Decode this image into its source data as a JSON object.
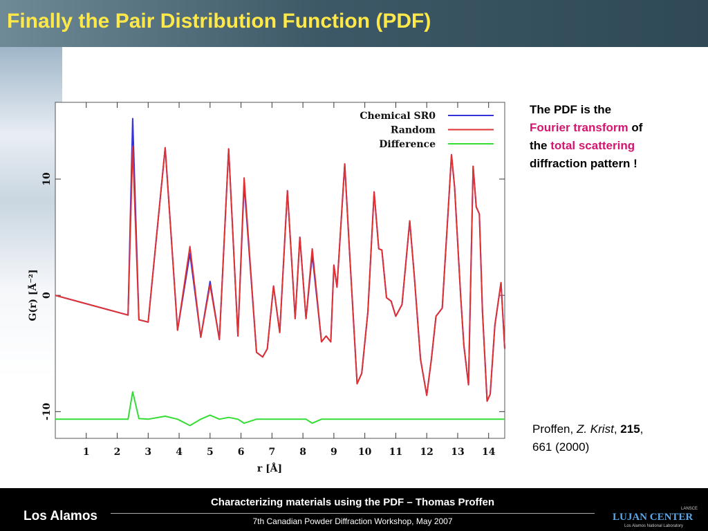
{
  "header": {
    "title": "Finally the Pair Distribution Function (PDF)"
  },
  "note": {
    "parts": [
      "The PDF is the",
      "Fourier transform",
      "of",
      "the",
      "total scattering",
      "diffraction pattern !"
    ]
  },
  "citation": {
    "parts": [
      "Proffen,",
      "Z. Krist",
      ",",
      "215",
      ",",
      "661 (2000)"
    ]
  },
  "footer": {
    "title": "Characterizing materials using the PDF – Thomas Proffen",
    "subtitle": "7th Canadian Powder Diffraction Workshop, May 2007",
    "left_logo": "Los Alamos",
    "right_logo": "LUJAN CENTER",
    "right_logo_top": "LANSCE",
    "right_logo_sub": "Los Alamos National Laboratory"
  },
  "chart_data": {
    "type": "line",
    "x_label": "r [Å]",
    "y_label": "G(r) [Å⁻²]",
    "xlim": [
      0,
      14.52
    ],
    "ylim": [
      -12.3,
      16.6
    ],
    "xticks": [
      1,
      2,
      3,
      4,
      5,
      6,
      7,
      8,
      9,
      10,
      11,
      12,
      13,
      14
    ],
    "yticks": [
      -10,
      0,
      10
    ],
    "legend": "upper right",
    "x": [
      0,
      2.35,
      2.5,
      2.7,
      3.0,
      3.55,
      3.95,
      4.35,
      4.7,
      5.0,
      5.3,
      5.6,
      5.9,
      6.1,
      6.5,
      6.7,
      6.85,
      7.05,
      7.25,
      7.5,
      7.75,
      7.9,
      8.1,
      8.3,
      8.6,
      8.75,
      8.9,
      9.0,
      9.1,
      9.35,
      9.5,
      9.75,
      9.9,
      10.1,
      10.3,
      10.45,
      10.55,
      10.7,
      10.85,
      11.0,
      11.2,
      11.45,
      11.6,
      11.8,
      12.0,
      12.15,
      12.3,
      12.5,
      12.7,
      12.8,
      12.9,
      13.1,
      13.2,
      13.35,
      13.5,
      13.6,
      13.7,
      13.8,
      13.95,
      14.05,
      14.2,
      14.4,
      14.52
    ],
    "series": [
      {
        "name": "Chemical SR0",
        "color": "#3434d8",
        "values": [
          0,
          -1.7,
          15.2,
          -2.1,
          -2.3,
          12.7,
          -3.0,
          3.6,
          -3.6,
          1.2,
          -3.8,
          12.6,
          -3.5,
          9.6,
          -4.9,
          -5.3,
          -4.6,
          0.8,
          -3.2,
          9.0,
          -2.0,
          5.0,
          -2.0,
          3.5,
          -4.0,
          -3.5,
          -4.0,
          2.6,
          0.7,
          11.3,
          4.0,
          -7.6,
          -6.7,
          -1.4,
          8.9,
          4.0,
          3.9,
          -0.2,
          -0.5,
          -1.8,
          -0.8,
          6.4,
          1.6,
          -5.5,
          -8.6,
          -5.5,
          -1.8,
          -1.1,
          7.6,
          12.1,
          9.3,
          -0.2,
          -4.3,
          -7.7,
          11.1,
          7.6,
          7.0,
          -1.4,
          -9.1,
          -8.5,
          -2.6,
          1.1,
          -4.6
        ]
      },
      {
        "name": "Random",
        "color": "#e03232",
        "values": [
          0,
          -1.7,
          12.8,
          -2.1,
          -2.3,
          12.7,
          -3.0,
          4.2,
          -3.6,
          0.9,
          -3.8,
          12.6,
          -3.5,
          10.1,
          -4.9,
          -5.3,
          -4.6,
          0.8,
          -3.2,
          9.0,
          -2.0,
          5.0,
          -2.0,
          4.0,
          -4.0,
          -3.5,
          -4.0,
          2.6,
          0.7,
          11.3,
          4.0,
          -7.6,
          -6.7,
          -1.4,
          8.9,
          4.0,
          3.9,
          -0.2,
          -0.5,
          -1.8,
          -0.8,
          6.4,
          1.6,
          -5.5,
          -8.6,
          -5.5,
          -1.8,
          -1.1,
          7.6,
          12.1,
          9.3,
          -0.2,
          -4.3,
          -7.7,
          11.1,
          7.6,
          7.0,
          -1.4,
          -9.1,
          -8.5,
          -2.6,
          1.1,
          -4.6
        ]
      },
      {
        "name": "Difference",
        "color": "#33dd33",
        "values": [
          -10.65,
          -10.65,
          -8.3,
          -10.6,
          -10.65,
          -10.4,
          -10.65,
          -11.2,
          -10.65,
          -10.3,
          -10.65,
          -10.5,
          -10.65,
          -11.0,
          -10.65,
          -10.65,
          -10.65,
          -10.65,
          -10.65,
          -10.65,
          -10.65,
          -10.65,
          -10.65,
          -11.0,
          -10.65,
          -10.65,
          -10.65,
          -10.65,
          -10.65,
          -10.65,
          -10.65,
          -10.65,
          -10.65,
          -10.65,
          -10.65,
          -10.65,
          -10.65,
          -10.65,
          -10.65,
          -10.65,
          -10.65,
          -10.65,
          -10.65,
          -10.65,
          -10.65,
          -10.65,
          -10.65,
          -10.65,
          -10.65,
          -10.65,
          -10.65,
          -10.65,
          -10.65,
          -10.65,
          -10.65,
          -10.65,
          -10.65,
          -10.65,
          -10.65,
          -10.65,
          -10.65,
          -10.65,
          -10.65
        ]
      }
    ]
  }
}
